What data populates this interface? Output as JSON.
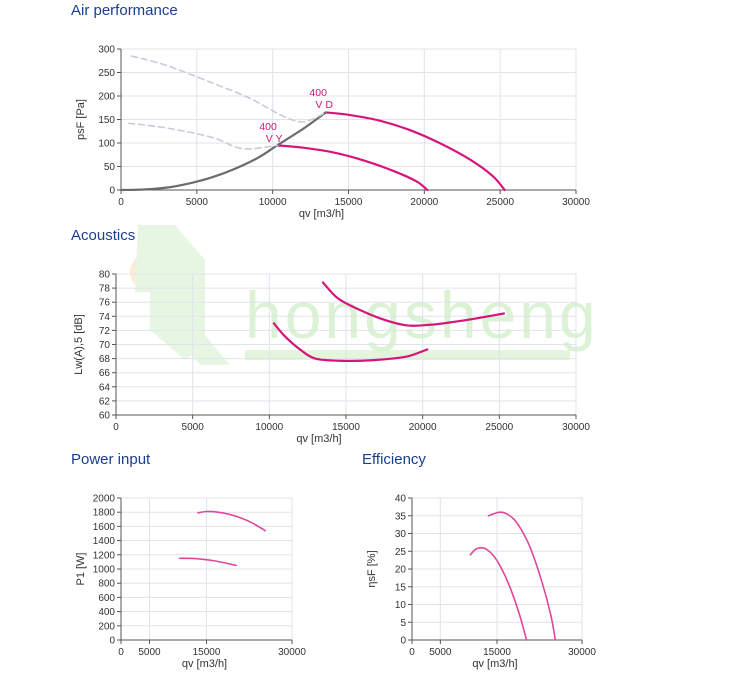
{
  "sections": {
    "air": "Air performance",
    "acoustics": "Acoustics",
    "power": "Power input",
    "efficiency": "Efficiency"
  },
  "watermark": {
    "text": "hongsheng",
    "color": "#cfeec6"
  },
  "colors": {
    "curve": "#d6157a",
    "curve_light": "#e0479b",
    "system": "#6b6b6b",
    "system_dashed": "#c5cdd8",
    "grid": "#dfe3ea",
    "axis": "#555555",
    "title": "#1a3f8f"
  },
  "chart_data": [
    {
      "id": "air",
      "type": "line",
      "xlabel": "qv [m3/h]",
      "ylabel": "psF [Pa]",
      "xlim": [
        0,
        30000
      ],
      "ylim": [
        0,
        300
      ],
      "xticks": [
        0,
        5000,
        10000,
        15000,
        20000,
        25000,
        30000
      ],
      "yticks": [
        0,
        50,
        100,
        150,
        200,
        250,
        300
      ],
      "grid": true,
      "series": [
        {
          "name": "400 V D",
          "style": "solid",
          "color": "#d6157a",
          "x": [
            13500,
            15000,
            17000,
            19000,
            21000,
            23000,
            24500,
            25300
          ],
          "y": [
            165,
            160,
            148,
            128,
            100,
            65,
            30,
            0
          ]
        },
        {
          "name": "400 V Y",
          "style": "solid",
          "color": "#d6157a",
          "x": [
            10300,
            12000,
            14000,
            16000,
            18000,
            19500,
            20200
          ],
          "y": [
            95,
            90,
            80,
            63,
            40,
            18,
            0
          ]
        },
        {
          "name": "",
          "style": "solid",
          "color": "#6b6b6b",
          "x": [
            0,
            1500,
            3000,
            4500,
            6000,
            7500,
            9000,
            10300,
            12000,
            13500
          ],
          "y": [
            0,
            1,
            5,
            14,
            27,
            45,
            68,
            95,
            130,
            165
          ]
        },
        {
          "name": "",
          "style": "dashed",
          "color": "#c5cdd8",
          "x": [
            700,
            3000,
            6000,
            8500,
            10500,
            12000,
            13500
          ],
          "y": [
            285,
            265,
            228,
            195,
            160,
            145,
            165
          ]
        },
        {
          "name": "",
          "style": "dashed",
          "color": "#c5cdd8",
          "x": [
            500,
            3000,
            6000,
            8000,
            10300
          ],
          "y": [
            142,
            132,
            112,
            88,
            95
          ]
        }
      ],
      "labels": [
        {
          "line1": "400",
          "line2": "V D",
          "x": 13000,
          "y": 200
        },
        {
          "line1": "400",
          "line2": "V Y",
          "x": 9700,
          "y": 128
        }
      ]
    },
    {
      "id": "acoustics",
      "type": "line",
      "xlabel": "qv [m3/h]",
      "ylabel": "Lw(A),5 [dB]",
      "xlim": [
        0,
        30000
      ],
      "ylim": [
        60,
        80
      ],
      "xticks": [
        0,
        5000,
        10000,
        15000,
        20000,
        25000,
        30000
      ],
      "yticks": [
        60,
        62,
        64,
        66,
        68,
        70,
        72,
        74,
        76,
        78,
        80
      ],
      "grid": true,
      "series": [
        {
          "name": "",
          "style": "solid",
          "color": "#d6157a",
          "x": [
            13500,
            14500,
            16000,
            17500,
            19000,
            20500,
            22000,
            23500,
            25300
          ],
          "y": [
            78.8,
            76.5,
            74.8,
            73.5,
            72.7,
            72.8,
            73.2,
            73.7,
            74.4
          ]
        },
        {
          "name": "",
          "style": "solid",
          "color": "#d6157a",
          "x": [
            10300,
            11000,
            12000,
            13000,
            14500,
            16000,
            17500,
            19000,
            20300
          ],
          "y": [
            73.0,
            71.2,
            69.3,
            68.0,
            67.7,
            67.7,
            67.9,
            68.3,
            69.3
          ]
        }
      ]
    },
    {
      "id": "power",
      "type": "line",
      "xlabel": "qv [m3/h]",
      "ylabel": "P1 [W]",
      "xlim": [
        0,
        30000
      ],
      "ylim": [
        0,
        2000
      ],
      "xticks": [
        0,
        5000,
        15000,
        30000
      ],
      "yticks": [
        0,
        200,
        400,
        600,
        800,
        1000,
        1200,
        1400,
        1600,
        1800,
        2000
      ],
      "grid": true,
      "series": [
        {
          "name": "",
          "style": "solid",
          "color": "#e0479b",
          "x": [
            13500,
            15000,
            17000,
            19000,
            21000,
            23000,
            25300
          ],
          "y": [
            1790,
            1810,
            1800,
            1770,
            1720,
            1650,
            1540
          ]
        },
        {
          "name": "",
          "style": "solid",
          "color": "#e0479b",
          "x": [
            10300,
            12000,
            14000,
            16000,
            18000,
            20200
          ],
          "y": [
            1150,
            1150,
            1140,
            1120,
            1090,
            1050
          ]
        }
      ]
    },
    {
      "id": "efficiency",
      "type": "line",
      "xlabel": "qv [m3/h]",
      "ylabel": "ηsF [%]",
      "xlim": [
        0,
        30000
      ],
      "ylim": [
        0,
        40
      ],
      "xticks": [
        0,
        5000,
        15000,
        30000
      ],
      "yticks": [
        0,
        5,
        10,
        15,
        20,
        25,
        30,
        35,
        40
      ],
      "grid": true,
      "series": [
        {
          "name": "",
          "style": "solid",
          "color": "#e0479b",
          "x": [
            13500,
            14500,
            15500,
            16500,
            18000,
            19500,
            21000,
            23000,
            24500,
            25300
          ],
          "y": [
            35,
            35.6,
            36,
            35.7,
            34,
            30.5,
            25.5,
            16,
            7,
            0
          ]
        },
        {
          "name": "",
          "style": "solid",
          "color": "#e0479b",
          "x": [
            10300,
            11200,
            12200,
            13200,
            14500,
            16000,
            17500,
            19000,
            20200
          ],
          "y": [
            24,
            25.5,
            26,
            25.5,
            23.5,
            19.5,
            14,
            7,
            0
          ]
        }
      ]
    }
  ]
}
